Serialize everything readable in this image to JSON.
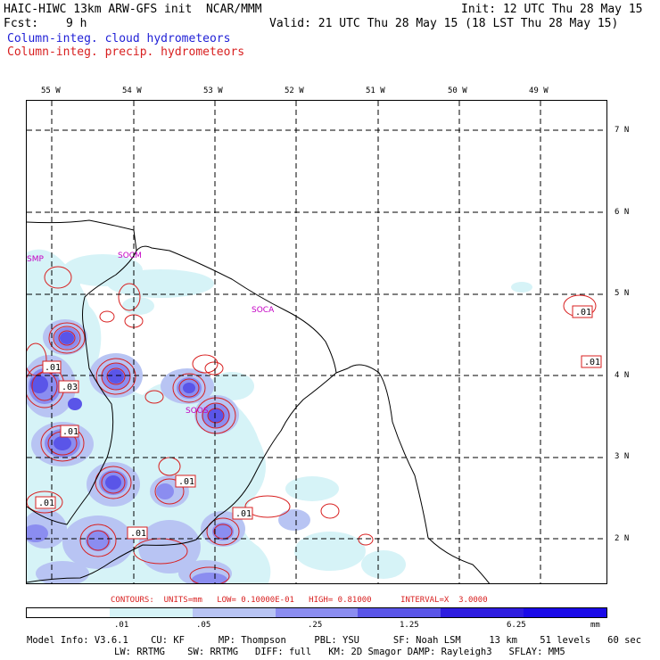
{
  "header": {
    "title": "HAIC-HIWC 13km ARW-GFS init  NCAR/MMM",
    "init": "Init: 12 UTC Thu 28 May 15",
    "fcst_label": "Fcst:",
    "fcst_value": "9 h",
    "valid": "Valid: 21 UTC Thu 28 May 15 (18 LST Thu 28 May 15)",
    "legend_cloud": "Column-integ. cloud hydrometeors",
    "legend_precip": "Column-integ. precip. hydrometeors"
  },
  "axes": {
    "lon_labels": [
      "55 W",
      "54 W",
      "53 W",
      "52 W",
      "51 W",
      "50 W",
      "49 W"
    ],
    "lat_labels": [
      "7 N",
      "6 N",
      "5 N",
      "4 N",
      "3 N",
      "2 N"
    ]
  },
  "stations": [
    "SMP",
    "SOCM",
    "SOCA",
    "SOOS"
  ],
  "contour_labels": [
    ".01",
    ".01",
    ".03",
    ".01",
    ".01",
    ".01",
    ".01",
    ".01",
    ".01",
    ".01"
  ],
  "contours_line": "CONTOURS:  UNITS=mm   LOW= 0.10000E-01   HIGH= 0.81000      INTERVAL=X  3.0000",
  "colorbar": {
    "ticks": [
      ".01",
      ".05",
      ".25",
      "1.25",
      "6.25"
    ],
    "unit": "mm",
    "colors": [
      "#ffffff",
      "#d6f3f7",
      "#b8c4f3",
      "#8b8df0",
      "#5a55e8",
      "#2e1de0",
      "#1a0ae8"
    ]
  },
  "model_info": {
    "line1": "Model Info: V3.6.1    CU: KF      MP: Thompson     PBL: YSU      SF: Noah LSM     13 km    51 levels   60 sec",
    "line2": "LW: RRTMG    SW: RRTMG   DIFF: full   KM: 2D Smagor DAMP: Rayleigh3   SFLAY: MM5"
  }
}
